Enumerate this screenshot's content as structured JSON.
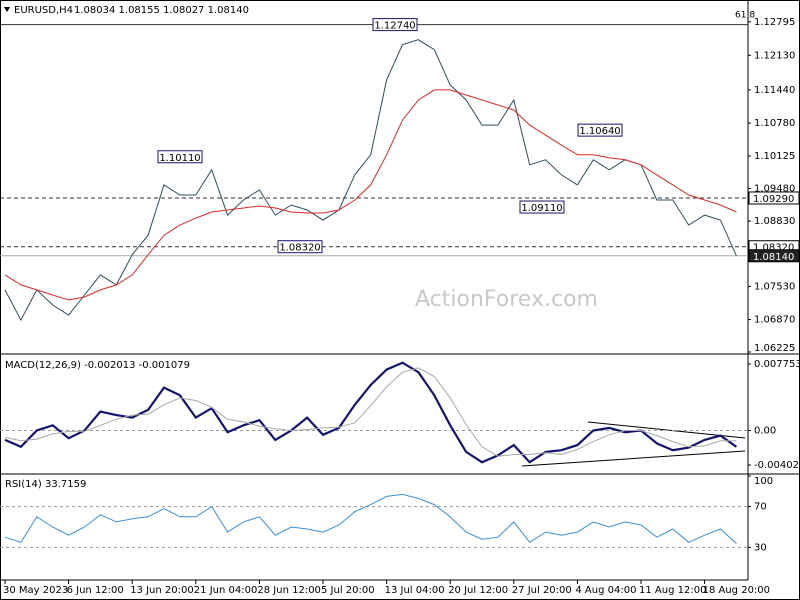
{
  "chart_data": [
    {
      "type": "line",
      "title": "EURUSD,H4",
      "subtitle": "1.08034 1.08155 1.08027 1.08140",
      "watermark": "ActionForex.com",
      "fib_label": "61.8",
      "series": [
        {
          "color": "#2f4f5f",
          "values": [
            1.0746,
            1.0686,
            1.0746,
            1.0716,
            1.0696,
            1.0736,
            1.0776,
            1.0756,
            1.0816,
            1.0855,
            1.0955,
            1.0935,
            1.0935,
            1.0985,
            1.0895,
            1.0925,
            1.0945,
            1.0895,
            1.0915,
            1.0905,
            1.0885,
            1.0905,
            1.0975,
            1.1015,
            1.1164,
            1.1234,
            1.1244,
            1.1224,
            1.1154,
            1.1124,
            1.1074,
            1.1074,
            1.1124,
            1.0995,
            1.1005,
            1.0975,
            1.0955,
            1.1005,
            1.0985,
            1.1005,
            1.0995,
            1.0925,
            1.0925,
            1.0875,
            1.0895,
            1.0885,
            1.0814
          ]
        },
        {
          "color": "#e02828",
          "values": [
            1.0776,
            1.0756,
            1.0746,
            1.0736,
            1.0726,
            1.0732,
            1.0746,
            1.0756,
            1.0776,
            1.0816,
            1.0855,
            1.0875,
            1.0889,
            1.0901,
            1.0905,
            1.0909,
            1.0913,
            1.0909,
            1.0901,
            1.0899,
            1.0899,
            1.0905,
            1.0925,
            1.0955,
            1.1015,
            1.1084,
            1.1124,
            1.1144,
            1.1144,
            1.1134,
            1.1124,
            1.1114,
            1.1104,
            1.1074,
            1.1054,
            1.1034,
            1.1015,
            1.1015,
            1.1009,
            1.1005,
            1.0995,
            1.0975,
            1.0955,
            1.0935,
            1.0925,
            1.0915,
            1.0901
          ]
        }
      ],
      "ylim": [
        1.06225,
        1.1313
      ],
      "yticks": [
        1.12795,
        {
          "value": 1.1213,
          "label": "1.12130"
        },
        {
          "value": 1.1144,
          "label": "1.11440"
        },
        {
          "value": 1.1078,
          "label": "1.10780"
        },
        1.10125,
        {
          "value": 1.0948,
          "label": "1.09480"
        },
        {
          "value": 1.0883,
          "label": "1.08830"
        },
        {
          "value": 1.0753,
          "label": "1.07530"
        },
        {
          "value": 1.0687,
          "label": "1.06870"
        },
        1.06225
      ],
      "grid": false,
      "levels": [
        {
          "value": 1.1274,
          "label": "1.12740",
          "style": "solid"
        },
        {
          "value": 1.0929,
          "label": "1.09290",
          "style": "dashed"
        },
        {
          "value": 1.0832,
          "label": "1.08320",
          "style": "dashed"
        },
        {
          "value": 1.0814,
          "label": "1.08140",
          "style": "current"
        }
      ],
      "annotations": [
        {
          "value": 1.1274,
          "label": "1.12740"
        },
        {
          "value": 1.1011,
          "label": "1.10110"
        },
        {
          "value": 1.0832,
          "label": "1.08320"
        },
        {
          "value": 1.0911,
          "label": "1.09110"
        },
        {
          "value": 1.1064,
          "label": "1.10640"
        }
      ]
    },
    {
      "type": "line",
      "title": "MACD(12,26,9) -0.002013 -0.001079",
      "series": [
        {
          "color": "#14146e",
          "values": [
            -0.0011,
            -0.0019,
            0.0,
            0.0006,
            -0.0009,
            0.0,
            0.0022,
            0.0018,
            0.0015,
            0.0024,
            0.005,
            0.0041,
            0.0015,
            0.0026,
            -0.0002,
            0.0006,
            0.0012,
            -0.0011,
            0.0,
            0.0015,
            -0.0005,
            0.0003,
            0.003,
            0.0053,
            0.0071,
            0.0079,
            0.0068,
            0.0041,
            0.0006,
            -0.0025,
            -0.0037,
            -0.0029,
            -0.0017,
            -0.0037,
            -0.0025,
            -0.0023,
            -0.0017,
            0.0,
            0.0003,
            -0.0002,
            0.0,
            -0.0015,
            -0.0023,
            -0.002,
            -0.0011,
            -0.0006,
            -0.0019
          ]
        },
        {
          "color": "#a8a8a8",
          "values": [
            -0.0008,
            -0.0012,
            -0.001,
            -0.0004,
            -0.0001,
            -0.0001,
            0.0006,
            0.0013,
            0.0018,
            0.0019,
            0.003,
            0.0038,
            0.0035,
            0.0027,
            0.0013,
            0.001,
            0.0005,
            0.0002,
            0.0,
            0.0001,
            0.0003,
            0.0004,
            0.0009,
            0.0029,
            0.0051,
            0.0068,
            0.0073,
            0.0063,
            0.0038,
            0.0007,
            -0.0019,
            -0.003,
            -0.0028,
            -0.0028,
            -0.0026,
            -0.0028,
            -0.0022,
            -0.0013,
            -0.0005,
            0.0,
            0.0,
            -0.0006,
            -0.0013,
            -0.0019,
            -0.0018,
            -0.0012,
            -0.0012
          ]
        }
      ],
      "ylim": [
        -0.00484,
        0.00857
      ],
      "yticks": [
        0.007753,
        {
          "value": 0,
          "label": "0.00"
        },
        -0.004027
      ],
      "zero_line": true
    },
    {
      "type": "line",
      "title": "RSI(14) 33.7159",
      "categories": [
        "30 May 2023",
        null,
        null,
        null,
        "6 Jun 12:00",
        null,
        null,
        null,
        "13 Jun 20:00",
        null,
        null,
        null,
        "21 Jun 04:00",
        null,
        null,
        null,
        "28 Jun 12:00",
        null,
        null,
        null,
        "5 Jul 20:00",
        null,
        null,
        null,
        "13 Jul 04:00",
        null,
        null,
        null,
        "20 Jul 12:00",
        null,
        null,
        null,
        "27 Jul 20:00",
        null,
        null,
        null,
        "4 Aug 04:00",
        null,
        null,
        null,
        "11 Aug 12:00",
        null,
        null,
        null,
        "18 Aug 20:00",
        null,
        null
      ],
      "series": [
        {
          "color": "#3a8fd8",
          "values": [
            40,
            35,
            60,
            50,
            42,
            50,
            62,
            55,
            58,
            60,
            68,
            60,
            60,
            70,
            45,
            55,
            60,
            42,
            50,
            48,
            45,
            52,
            65,
            72,
            80,
            82,
            78,
            72,
            60,
            45,
            38,
            40,
            55,
            35,
            45,
            42,
            45,
            55,
            50,
            55,
            52,
            40,
            48,
            35,
            42,
            48,
            33.7159
          ]
        }
      ],
      "ylim": [
        0,
        100
      ],
      "yticks": [
        100,
        70,
        30
      ],
      "levels": [
        70,
        30
      ]
    }
  ]
}
